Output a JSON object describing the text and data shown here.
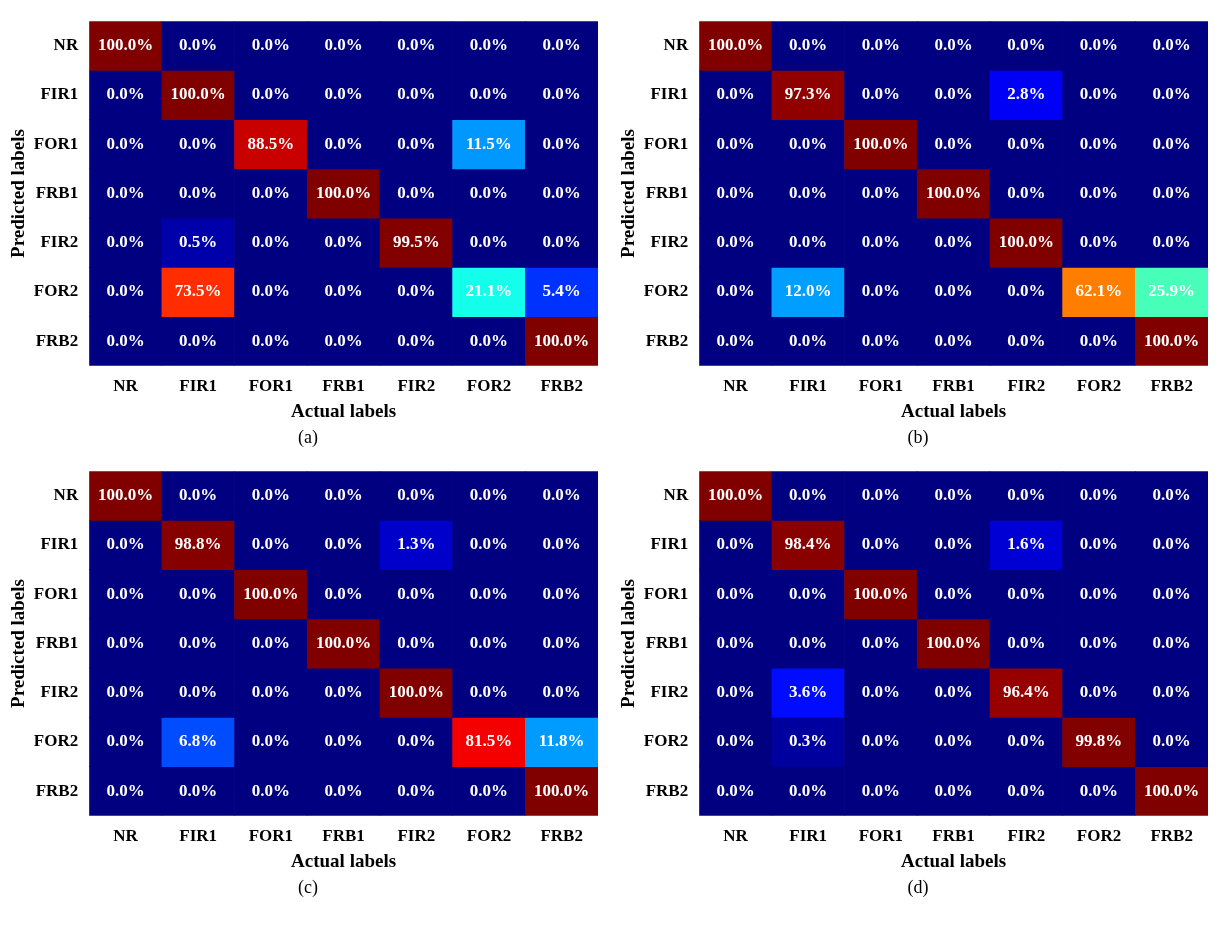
{
  "chart_data": [
    {
      "type": "heatmap",
      "xlabel": "Actual labels",
      "ylabel": "Predicted labels",
      "annotations": [
        "(a)"
      ],
      "categories": [
        "NR",
        "FIR1",
        "FOR1",
        "FRB1",
        "FIR2",
        "FOR2",
        "FRB2"
      ],
      "y_categories": [
        "NR",
        "FIR1",
        "FOR1",
        "FRB1",
        "FIR2",
        "FOR2",
        "FRB2"
      ],
      "cells": [
        [
          100.0,
          0.0,
          0.0,
          0.0,
          0.0,
          0.0,
          0.0
        ],
        [
          0.0,
          100.0,
          0.0,
          0.0,
          0.0,
          0.0,
          0.0
        ],
        [
          0.0,
          0.0,
          88.5,
          0.0,
          0.0,
          11.5,
          0.0
        ],
        [
          0.0,
          0.0,
          0.0,
          100.0,
          0.0,
          0.0,
          0.0
        ],
        [
          0.0,
          0.5,
          0.0,
          0.0,
          99.5,
          0.0,
          0.0
        ],
        [
          0.0,
          73.5,
          0.0,
          0.0,
          0.0,
          21.1,
          5.4
        ],
        [
          0.0,
          0.0,
          0.0,
          0.0,
          0.0,
          0.0,
          100.0
        ]
      ],
      "cell_labels": [
        [
          "100.0%",
          "0.0%",
          "0.0%",
          "0.0%",
          "0.0%",
          "0.0%",
          "0.0%"
        ],
        [
          "0.0%",
          "100.0%",
          "0.0%",
          "0.0%",
          "0.0%",
          "0.0%",
          "0.0%"
        ],
        [
          "0.0%",
          "0.0%",
          "88.5%",
          "0.0%",
          "0.0%",
          "11.5%",
          "0.0%"
        ],
        [
          "0.0%",
          "0.0%",
          "0.0%",
          "100.0%",
          "0.0%",
          "0.0%",
          "0.0%"
        ],
        [
          "0.0%",
          "0.5%",
          "0.0%",
          "0.0%",
          "99.5%",
          "0.0%",
          "0.0%"
        ],
        [
          "0.0%",
          "73.5%",
          "0.0%",
          "0.0%",
          "0.0%",
          "21.1%",
          "5.4%"
        ],
        [
          "0.0%",
          "0.0%",
          "0.0%",
          "0.0%",
          "0.0%",
          "0.0%",
          "100.0%"
        ]
      ]
    },
    {
      "type": "heatmap",
      "xlabel": "Actual labels",
      "ylabel": "Predicted labels",
      "annotations": [
        "(b)"
      ],
      "categories": [
        "NR",
        "FIR1",
        "FOR1",
        "FRB1",
        "FIR2",
        "FOR2",
        "FRB2"
      ],
      "y_categories": [
        "NR",
        "FIR1",
        "FOR1",
        "FRB1",
        "FIR2",
        "FOR2",
        "FRB2"
      ],
      "cells": [
        [
          100.0,
          0.0,
          0.0,
          0.0,
          0.0,
          0.0,
          0.0
        ],
        [
          0.0,
          97.3,
          0.0,
          0.0,
          2.8,
          0.0,
          0.0
        ],
        [
          0.0,
          0.0,
          100.0,
          0.0,
          0.0,
          0.0,
          0.0
        ],
        [
          0.0,
          0.0,
          0.0,
          100.0,
          0.0,
          0.0,
          0.0
        ],
        [
          0.0,
          0.0,
          0.0,
          0.0,
          100.0,
          0.0,
          0.0
        ],
        [
          0.0,
          12.0,
          0.0,
          0.0,
          0.0,
          62.1,
          25.9
        ],
        [
          0.0,
          0.0,
          0.0,
          0.0,
          0.0,
          0.0,
          100.0
        ]
      ],
      "cell_labels": [
        [
          "100.0%",
          "0.0%",
          "0.0%",
          "0.0%",
          "0.0%",
          "0.0%",
          "0.0%"
        ],
        [
          "0.0%",
          "97.3%",
          "0.0%",
          "0.0%",
          "2.8%",
          "0.0%",
          "0.0%"
        ],
        [
          "0.0%",
          "0.0%",
          "100.0%",
          "0.0%",
          "0.0%",
          "0.0%",
          "0.0%"
        ],
        [
          "0.0%",
          "0.0%",
          "0.0%",
          "100.0%",
          "0.0%",
          "0.0%",
          "0.0%"
        ],
        [
          "0.0%",
          "0.0%",
          "0.0%",
          "0.0%",
          "100.0%",
          "0.0%",
          "0.0%"
        ],
        [
          "0.0%",
          "12.0%",
          "0.0%",
          "0.0%",
          "0.0%",
          "62.1%",
          "25.9%"
        ],
        [
          "0.0%",
          "0.0%",
          "0.0%",
          "0.0%",
          "0.0%",
          "0.0%",
          "100.0%"
        ]
      ]
    },
    {
      "type": "heatmap",
      "xlabel": "Actual labels",
      "ylabel": "Predicted labels",
      "annotations": [
        "(c)"
      ],
      "categories": [
        "NR",
        "FIR1",
        "FOR1",
        "FRB1",
        "FIR2",
        "FOR2",
        "FRB2"
      ],
      "y_categories": [
        "NR",
        "FIR1",
        "FOR1",
        "FRB1",
        "FIR2",
        "FOR2",
        "FRB2"
      ],
      "cells": [
        [
          100.0,
          0.0,
          0.0,
          0.0,
          0.0,
          0.0,
          0.0
        ],
        [
          0.0,
          98.8,
          0.0,
          0.0,
          1.3,
          0.0,
          0.0
        ],
        [
          0.0,
          0.0,
          100.0,
          0.0,
          0.0,
          0.0,
          0.0
        ],
        [
          0.0,
          0.0,
          0.0,
          100.0,
          0.0,
          0.0,
          0.0
        ],
        [
          0.0,
          0.0,
          0.0,
          0.0,
          100.0,
          0.0,
          0.0
        ],
        [
          0.0,
          6.8,
          0.0,
          0.0,
          0.0,
          81.5,
          11.8
        ],
        [
          0.0,
          0.0,
          0.0,
          0.0,
          0.0,
          0.0,
          100.0
        ]
      ],
      "cell_labels": [
        [
          "100.0%",
          "0.0%",
          "0.0%",
          "0.0%",
          "0.0%",
          "0.0%",
          "0.0%"
        ],
        [
          "0.0%",
          "98.8%",
          "0.0%",
          "0.0%",
          "1.3%",
          "0.0%",
          "0.0%"
        ],
        [
          "0.0%",
          "0.0%",
          "100.0%",
          "0.0%",
          "0.0%",
          "0.0%",
          "0.0%"
        ],
        [
          "0.0%",
          "0.0%",
          "0.0%",
          "100.0%",
          "0.0%",
          "0.0%",
          "0.0%"
        ],
        [
          "0.0%",
          "0.0%",
          "0.0%",
          "0.0%",
          "100.0%",
          "0.0%",
          "0.0%"
        ],
        [
          "0.0%",
          "6.8%",
          "0.0%",
          "0.0%",
          "0.0%",
          "81.5%",
          "11.8%"
        ],
        [
          "0.0%",
          "0.0%",
          "0.0%",
          "0.0%",
          "0.0%",
          "0.0%",
          "100.0%"
        ]
      ]
    },
    {
      "type": "heatmap",
      "xlabel": "Actual labels",
      "ylabel": "Predicted labels",
      "annotations": [
        "(d)"
      ],
      "categories": [
        "NR",
        "FIR1",
        "FOR1",
        "FRB1",
        "FIR2",
        "FOR2",
        "FRB2"
      ],
      "y_categories": [
        "NR",
        "FIR1",
        "FOR1",
        "FRB1",
        "FIR2",
        "FOR2",
        "FRB2"
      ],
      "cells": [
        [
          100.0,
          0.0,
          0.0,
          0.0,
          0.0,
          0.0,
          0.0
        ],
        [
          0.0,
          98.4,
          0.0,
          0.0,
          1.6,
          0.0,
          0.0
        ],
        [
          0.0,
          0.0,
          100.0,
          0.0,
          0.0,
          0.0,
          0.0
        ],
        [
          0.0,
          0.0,
          0.0,
          100.0,
          0.0,
          0.0,
          0.0
        ],
        [
          0.0,
          3.6,
          0.0,
          0.0,
          96.4,
          0.0,
          0.0
        ],
        [
          0.0,
          0.3,
          0.0,
          0.0,
          0.0,
          99.8,
          0.0
        ],
        [
          0.0,
          0.0,
          0.0,
          0.0,
          0.0,
          0.0,
          100.0
        ]
      ],
      "cell_labels": [
        [
          "100.0%",
          "0.0%",
          "0.0%",
          "0.0%",
          "0.0%",
          "0.0%",
          "0.0%"
        ],
        [
          "0.0%",
          "98.4%",
          "0.0%",
          "0.0%",
          "1.6%",
          "0.0%",
          "0.0%"
        ],
        [
          "0.0%",
          "0.0%",
          "100.0%",
          "0.0%",
          "0.0%",
          "0.0%",
          "0.0%"
        ],
        [
          "0.0%",
          "0.0%",
          "0.0%",
          "100.0%",
          "0.0%",
          "0.0%",
          "0.0%"
        ],
        [
          "0.0%",
          "3.6%",
          "0.0%",
          "0.0%",
          "96.4%",
          "0.0%",
          "0.0%"
        ],
        [
          "0.0%",
          "0.3%",
          "0.0%",
          "0.0%",
          "0.0%",
          "99.8%",
          "0.0%"
        ],
        [
          "0.0%",
          "0.0%",
          "0.0%",
          "0.0%",
          "0.0%",
          "0.0%",
          "100.0%"
        ]
      ]
    }
  ]
}
